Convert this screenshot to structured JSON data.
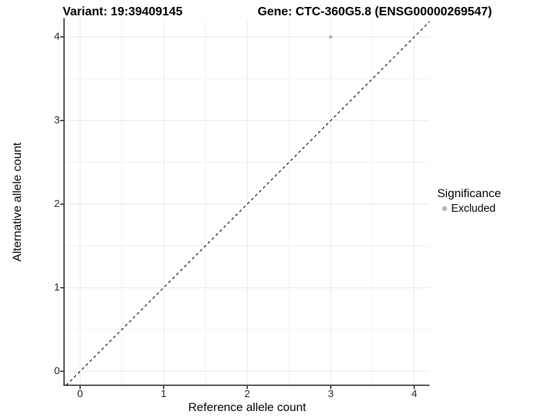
{
  "header": {
    "variant_title": "Variant: 19:39409145",
    "gene_title": "Gene: CTC-360G5.8 (ENSG00000269547)"
  },
  "axes": {
    "x": {
      "title": "Reference allele count",
      "ticks": [
        "0",
        "1",
        "2",
        "3",
        "4"
      ]
    },
    "y": {
      "title": "Alternative allele count",
      "ticks": [
        "0",
        "1",
        "2",
        "3",
        "4"
      ]
    }
  },
  "legend": {
    "title": "Significance",
    "items": [
      {
        "label": "Excluded",
        "color": "#b3b3b3"
      }
    ]
  },
  "chart_data": {
    "type": "scatter",
    "title": "Variant: 19:39409145 | Gene: CTC-360G5.8 (ENSG00000269547)",
    "xlabel": "Reference allele count",
    "ylabel": "Alternative allele count",
    "xlim": [
      -0.192,
      4.183
    ],
    "ylim": [
      -0.167,
      4.225
    ],
    "major_ticks": [
      0,
      1,
      2,
      3,
      4
    ],
    "minor_ticks": [
      0.5,
      1.5,
      2.5,
      3.5
    ],
    "grid": true,
    "legend_position": "right",
    "series": [
      {
        "name": "Excluded",
        "color": "#b3b3b3",
        "points": [
          {
            "x": 3,
            "y": 4
          }
        ]
      }
    ],
    "reference_line": {
      "kind": "identity y=x",
      "style": "dashed",
      "color": "#000000"
    }
  },
  "colors": {
    "background": "#ffffff",
    "grid_major": "#e6e6e6",
    "grid_minor": "#f2f2f2",
    "axis_line": "#333333",
    "tick_text": "#262626",
    "point": "#b3b3b3",
    "dashed_line": "#000000"
  }
}
